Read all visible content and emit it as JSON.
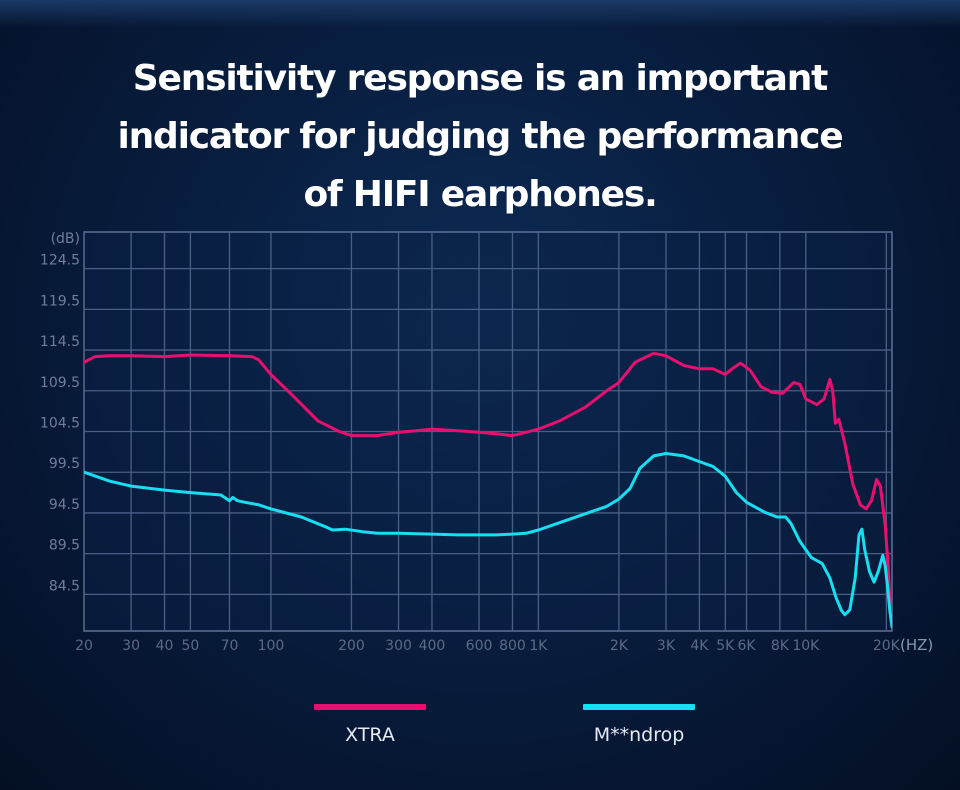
{
  "headline": {
    "line1": "Sensitivity response is an important",
    "line2": "indicator for judging the performance",
    "line3": "of HIFI earphones."
  },
  "chart_data": {
    "type": "line",
    "title": "Sensitivity response is an important indicator for judging the performance of HIFI earphones.",
    "xlabel": "(HZ)",
    "ylabel": "(dB)",
    "x_scale": "log",
    "xlim": [
      20,
      21000
    ],
    "ylim": [
      80,
      129
    ],
    "grid": true,
    "legend_position": "bottom",
    "y_ticks": [
      {
        "value": 124.5,
        "label": "124.5"
      },
      {
        "value": 119.5,
        "label": "119.5"
      },
      {
        "value": 114.5,
        "label": "114.5"
      },
      {
        "value": 109.5,
        "label": "109.5"
      },
      {
        "value": 104.5,
        "label": "104.5"
      },
      {
        "value": 99.5,
        "label": "99.5"
      },
      {
        "value": 94.5,
        "label": "94.5"
      },
      {
        "value": 89.5,
        "label": "89.5"
      },
      {
        "value": 84.5,
        "label": "84.5"
      }
    ],
    "x_ticks": [
      {
        "value": 20,
        "label": "20"
      },
      {
        "value": 30,
        "label": "30"
      },
      {
        "value": 40,
        "label": "40"
      },
      {
        "value": 50,
        "label": "50"
      },
      {
        "value": 70,
        "label": "70"
      },
      {
        "value": 100,
        "label": "100"
      },
      {
        "value": 200,
        "label": "200"
      },
      {
        "value": 300,
        "label": "300"
      },
      {
        "value": 400,
        "label": "400"
      },
      {
        "value": 600,
        "label": "600"
      },
      {
        "value": 800,
        "label": "800"
      },
      {
        "value": 1000,
        "label": "1K"
      },
      {
        "value": 2000,
        "label": "2K"
      },
      {
        "value": 3000,
        "label": "3K"
      },
      {
        "value": 4000,
        "label": "4K"
      },
      {
        "value": 5000,
        "label": "5K"
      },
      {
        "value": 6000,
        "label": "6K"
      },
      {
        "value": 8000,
        "label": "8K"
      },
      {
        "value": 10000,
        "label": "10K"
      },
      {
        "value": 20000,
        "label": "20K"
      }
    ],
    "series": [
      {
        "name": "XTRA",
        "color": "#e8106f",
        "points": [
          [
            20,
            113.0
          ],
          [
            22,
            113.7
          ],
          [
            25,
            113.8
          ],
          [
            30,
            113.8
          ],
          [
            40,
            113.7
          ],
          [
            50,
            113.9
          ],
          [
            70,
            113.8
          ],
          [
            85,
            113.7
          ],
          [
            90,
            113.3
          ],
          [
            100,
            111.5
          ],
          [
            120,
            109.0
          ],
          [
            150,
            105.8
          ],
          [
            180,
            104.5
          ],
          [
            200,
            104.0
          ],
          [
            250,
            104.0
          ],
          [
            300,
            104.4
          ],
          [
            350,
            104.6
          ],
          [
            400,
            104.8
          ],
          [
            500,
            104.6
          ],
          [
            600,
            104.4
          ],
          [
            700,
            104.2
          ],
          [
            800,
            104.0
          ],
          [
            900,
            104.4
          ],
          [
            1000,
            104.8
          ],
          [
            1200,
            105.8
          ],
          [
            1500,
            107.5
          ],
          [
            1800,
            109.5
          ],
          [
            2000,
            110.5
          ],
          [
            2300,
            113.0
          ],
          [
            2700,
            114.1
          ],
          [
            3000,
            113.8
          ],
          [
            3500,
            112.6
          ],
          [
            4000,
            112.2
          ],
          [
            4500,
            112.2
          ],
          [
            5000,
            111.5
          ],
          [
            5300,
            112.2
          ],
          [
            5700,
            112.9
          ],
          [
            6200,
            112.0
          ],
          [
            6800,
            110.0
          ],
          [
            7500,
            109.3
          ],
          [
            8200,
            109.2
          ],
          [
            9000,
            110.5
          ],
          [
            9500,
            110.3
          ],
          [
            10000,
            108.5
          ],
          [
            11000,
            107.8
          ],
          [
            11700,
            108.5
          ],
          [
            12300,
            110.9
          ],
          [
            12600,
            109.5
          ],
          [
            12900,
            105.5
          ],
          [
            13300,
            106.0
          ],
          [
            14000,
            103.0
          ],
          [
            15000,
            98.0
          ],
          [
            16000,
            95.5
          ],
          [
            16800,
            95.0
          ],
          [
            17600,
            96.0
          ],
          [
            18400,
            98.6
          ],
          [
            19000,
            97.8
          ],
          [
            19800,
            93.0
          ],
          [
            20300,
            88.0
          ],
          [
            20600,
            84.0
          ],
          [
            21000,
            81.0
          ]
        ]
      },
      {
        "name": "M**ndrop",
        "color": "#17dff2",
        "points": [
          [
            20,
            99.5
          ],
          [
            25,
            98.4
          ],
          [
            30,
            97.8
          ],
          [
            40,
            97.3
          ],
          [
            50,
            97.0
          ],
          [
            60,
            96.8
          ],
          [
            65,
            96.7
          ],
          [
            70,
            96.0
          ],
          [
            72,
            96.4
          ],
          [
            75,
            96.0
          ],
          [
            80,
            95.8
          ],
          [
            90,
            95.5
          ],
          [
            100,
            95.0
          ],
          [
            130,
            94.0
          ],
          [
            160,
            92.8
          ],
          [
            170,
            92.4
          ],
          [
            190,
            92.5
          ],
          [
            220,
            92.2
          ],
          [
            250,
            92.0
          ],
          [
            300,
            92.0
          ],
          [
            400,
            91.9
          ],
          [
            500,
            91.8
          ],
          [
            600,
            91.8
          ],
          [
            700,
            91.8
          ],
          [
            800,
            91.9
          ],
          [
            900,
            92.0
          ],
          [
            1000,
            92.4
          ],
          [
            1200,
            93.3
          ],
          [
            1500,
            94.4
          ],
          [
            1800,
            95.3
          ],
          [
            2000,
            96.2
          ],
          [
            2200,
            97.5
          ],
          [
            2400,
            100.0
          ],
          [
            2700,
            101.5
          ],
          [
            3000,
            101.8
          ],
          [
            3500,
            101.5
          ],
          [
            4000,
            100.8
          ],
          [
            4500,
            100.2
          ],
          [
            5000,
            99.0
          ],
          [
            5500,
            97.0
          ],
          [
            6000,
            95.8
          ],
          [
            7000,
            94.6
          ],
          [
            7800,
            94.0
          ],
          [
            8400,
            94.0
          ],
          [
            8800,
            93.2
          ],
          [
            9500,
            91.0
          ],
          [
            10500,
            89.0
          ],
          [
            11500,
            88.3
          ],
          [
            12300,
            86.5
          ],
          [
            13000,
            84.0
          ],
          [
            13600,
            82.5
          ],
          [
            14000,
            82.0
          ],
          [
            14600,
            82.6
          ],
          [
            15300,
            86.5
          ],
          [
            15800,
            91.8
          ],
          [
            16200,
            92.5
          ],
          [
            16600,
            90.0
          ],
          [
            17300,
            87.3
          ],
          [
            18000,
            86.0
          ],
          [
            18700,
            87.4
          ],
          [
            19400,
            89.3
          ],
          [
            19800,
            88.0
          ],
          [
            20200,
            85.5
          ],
          [
            20600,
            82.5
          ],
          [
            21000,
            80.5
          ]
        ]
      }
    ],
    "legend": [
      "XTRA",
      "M**ndrop"
    ]
  }
}
